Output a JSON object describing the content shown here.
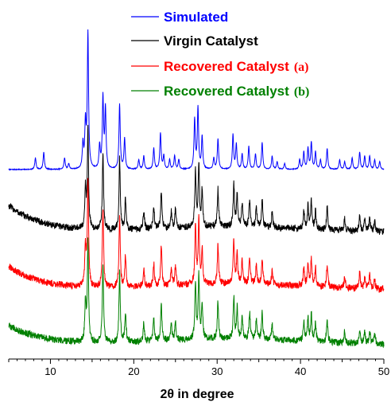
{
  "chart_data": {
    "type": "line",
    "title": "",
    "xlabel": "2θ  in degree",
    "ylabel": "",
    "xlim": [
      5,
      50
    ],
    "xticks": [
      10,
      20,
      30,
      40,
      50
    ],
    "xtick_labels": [
      "10",
      "20",
      "30",
      "40",
      "50"
    ],
    "grid": false,
    "legend_position": "top",
    "series": [
      {
        "name": "Simulated",
        "suffix": "",
        "color": "#0000ff",
        "baseline": 0,
        "peaks": [
          [
            8.2,
            0.06
          ],
          [
            9.2,
            0.09
          ],
          [
            11.7,
            0.06
          ],
          [
            12.2,
            0.03
          ],
          [
            13.9,
            0.13
          ],
          [
            14.2,
            0.23
          ],
          [
            14.5,
            0.71
          ],
          [
            15.9,
            0.12
          ],
          [
            16.3,
            0.37
          ],
          [
            16.6,
            0.31
          ],
          [
            18.3,
            0.34
          ],
          [
            18.9,
            0.16
          ],
          [
            20.6,
            0.05
          ],
          [
            21.2,
            0.07
          ],
          [
            22.4,
            0.11
          ],
          [
            23.2,
            0.19
          ],
          [
            23.6,
            0.07
          ],
          [
            24.3,
            0.05
          ],
          [
            24.9,
            0.07
          ],
          [
            25.4,
            0.05
          ],
          [
            27.3,
            0.26
          ],
          [
            27.7,
            0.32
          ],
          [
            28.2,
            0.17
          ],
          [
            29.6,
            0.06
          ],
          [
            30.1,
            0.16
          ],
          [
            31.9,
            0.18
          ],
          [
            32.3,
            0.13
          ],
          [
            33.0,
            0.08
          ],
          [
            33.8,
            0.12
          ],
          [
            34.6,
            0.08
          ],
          [
            35.4,
            0.14
          ],
          [
            36.6,
            0.07
          ],
          [
            37.2,
            0.04
          ],
          [
            38.1,
            0.03
          ],
          [
            39.9,
            0.05
          ],
          [
            40.4,
            0.09
          ],
          [
            40.9,
            0.11
          ],
          [
            41.3,
            0.14
          ],
          [
            41.8,
            0.09
          ],
          [
            42.4,
            0.05
          ],
          [
            43.2,
            0.11
          ],
          [
            44.7,
            0.05
          ],
          [
            45.3,
            0.04
          ],
          [
            46.2,
            0.06
          ],
          [
            47.1,
            0.09
          ],
          [
            47.7,
            0.07
          ],
          [
            48.3,
            0.07
          ],
          [
            48.9,
            0.05
          ],
          [
            49.5,
            0.04
          ]
        ]
      },
      {
        "name": "Virgin Catalyst",
        "suffix": "",
        "color": "#000000",
        "baseline": 0.14,
        "peaks": [
          [
            14.2,
            0.2
          ],
          [
            14.5,
            0.52
          ],
          [
            16.3,
            0.4
          ],
          [
            18.3,
            0.37
          ],
          [
            19.0,
            0.16
          ],
          [
            21.2,
            0.1
          ],
          [
            22.4,
            0.12
          ],
          [
            23.3,
            0.2
          ],
          [
            24.5,
            0.09
          ],
          [
            25.0,
            0.1
          ],
          [
            27.4,
            0.3
          ],
          [
            27.8,
            0.33
          ],
          [
            28.2,
            0.19
          ],
          [
            30.1,
            0.2
          ],
          [
            32.0,
            0.22
          ],
          [
            32.4,
            0.16
          ],
          [
            33.0,
            0.12
          ],
          [
            33.9,
            0.14
          ],
          [
            34.7,
            0.1
          ],
          [
            35.4,
            0.14
          ],
          [
            36.6,
            0.08
          ],
          [
            40.4,
            0.1
          ],
          [
            40.9,
            0.12
          ],
          [
            41.3,
            0.14
          ],
          [
            41.8,
            0.1
          ],
          [
            43.2,
            0.12
          ],
          [
            45.3,
            0.06
          ],
          [
            47.1,
            0.08
          ],
          [
            47.7,
            0.06
          ],
          [
            48.3,
            0.07
          ],
          [
            48.9,
            0.05
          ]
        ]
      },
      {
        "name": "Recovered Catalyst",
        "suffix": "(a)",
        "color": "#ff0000",
        "baseline": 0.12,
        "peaks": [
          [
            14.2,
            0.2
          ],
          [
            14.5,
            0.56
          ],
          [
            16.3,
            0.42
          ],
          [
            18.3,
            0.38
          ],
          [
            19.0,
            0.16
          ],
          [
            21.2,
            0.1
          ],
          [
            22.4,
            0.12
          ],
          [
            23.3,
            0.21
          ],
          [
            24.5,
            0.09
          ],
          [
            25.0,
            0.1
          ],
          [
            27.4,
            0.31
          ],
          [
            27.8,
            0.33
          ],
          [
            28.2,
            0.19
          ],
          [
            30.1,
            0.21
          ],
          [
            32.0,
            0.23
          ],
          [
            32.4,
            0.16
          ],
          [
            33.0,
            0.12
          ],
          [
            33.9,
            0.14
          ],
          [
            34.7,
            0.1
          ],
          [
            35.4,
            0.14
          ],
          [
            36.6,
            0.08
          ],
          [
            40.4,
            0.1
          ],
          [
            40.9,
            0.12
          ],
          [
            41.3,
            0.14
          ],
          [
            41.8,
            0.1
          ],
          [
            43.2,
            0.12
          ],
          [
            45.3,
            0.06
          ],
          [
            47.1,
            0.08
          ],
          [
            47.7,
            0.06
          ],
          [
            48.3,
            0.07
          ],
          [
            48.9,
            0.05
          ]
        ]
      },
      {
        "name": "Recovered Catalyst",
        "suffix": "(b)",
        "color": "#008000",
        "baseline": 0.1,
        "peaks": [
          [
            14.2,
            0.2
          ],
          [
            14.5,
            0.52
          ],
          [
            16.3,
            0.4
          ],
          [
            18.3,
            0.37
          ],
          [
            19.0,
            0.16
          ],
          [
            21.2,
            0.1
          ],
          [
            22.4,
            0.12
          ],
          [
            23.3,
            0.2
          ],
          [
            24.5,
            0.09
          ],
          [
            25.0,
            0.1
          ],
          [
            27.4,
            0.3
          ],
          [
            27.8,
            0.33
          ],
          [
            28.2,
            0.19
          ],
          [
            30.1,
            0.2
          ],
          [
            32.0,
            0.22
          ],
          [
            32.4,
            0.16
          ],
          [
            33.0,
            0.12
          ],
          [
            33.9,
            0.14
          ],
          [
            34.7,
            0.1
          ],
          [
            35.4,
            0.14
          ],
          [
            36.6,
            0.08
          ],
          [
            40.4,
            0.1
          ],
          [
            40.9,
            0.12
          ],
          [
            41.3,
            0.14
          ],
          [
            41.8,
            0.1
          ],
          [
            43.2,
            0.12
          ],
          [
            45.3,
            0.06
          ],
          [
            47.1,
            0.08
          ],
          [
            47.7,
            0.06
          ],
          [
            48.3,
            0.07
          ],
          [
            48.9,
            0.05
          ]
        ]
      }
    ]
  }
}
